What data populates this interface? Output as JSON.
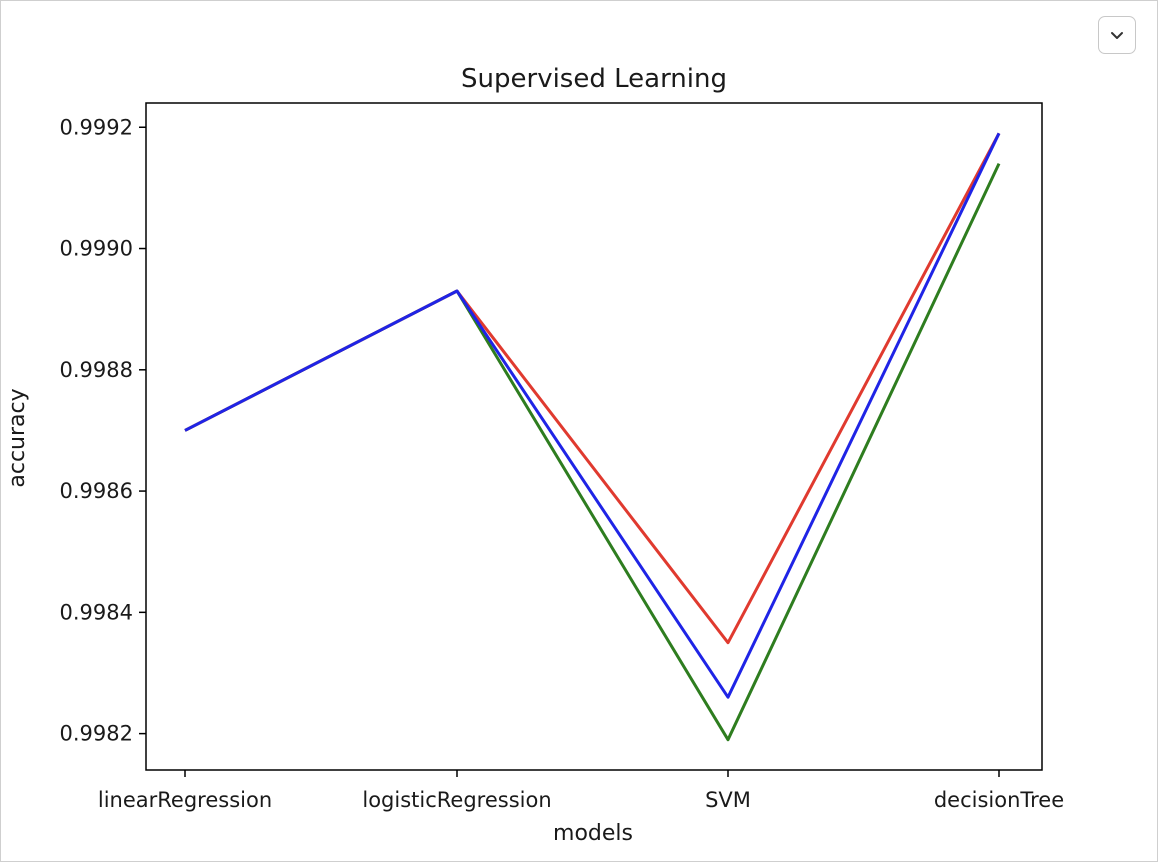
{
  "output": {
    "collapse_icon": "chevron-down-icon"
  },
  "chart_data": {
    "type": "line",
    "title": "Supervised Learning",
    "xlabel": "models",
    "ylabel": "accuracy",
    "categories": [
      "linearRegression",
      "logisticRegression",
      "SVM",
      "decisionTree"
    ],
    "ylim": [
      0.99814,
      0.99924
    ],
    "yticks": [
      0.9982,
      0.9984,
      0.9986,
      0.9988,
      0.999,
      0.9992
    ],
    "ytick_labels": [
      "0.9982",
      "0.9984",
      "0.9986",
      "0.9988",
      "0.9990",
      "0.9992"
    ],
    "grid": false,
    "series": [
      {
        "color": "#2e7d1f",
        "values": [
          0.9987,
          0.99893,
          0.99819,
          0.99914
        ]
      },
      {
        "color": "#e03a2f",
        "values": [
          0.9987,
          0.99893,
          0.99835,
          0.99919
        ]
      },
      {
        "color": "#1f24e6",
        "values": [
          0.9987,
          0.99893,
          0.99826,
          0.99919
        ]
      }
    ]
  }
}
